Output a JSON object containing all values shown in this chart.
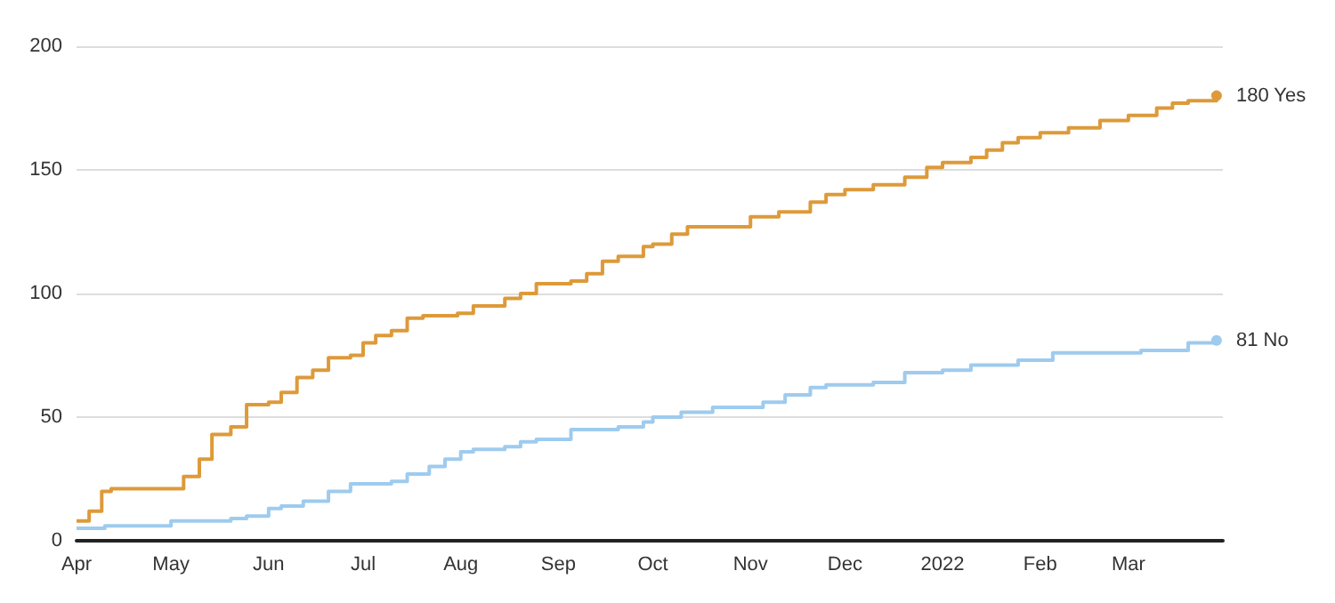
{
  "chart_data": {
    "type": "step",
    "legend": false,
    "grid": "y",
    "xlim": [
      "2021-04-01",
      "2022-03-31"
    ],
    "ylim": [
      0,
      200
    ],
    "yticks": [
      0,
      50,
      100,
      150,
      200
    ],
    "xticks": [
      {
        "value": "2021-04-01",
        "label": "Apr"
      },
      {
        "value": "2021-05-01",
        "label": "May"
      },
      {
        "value": "2021-06-01",
        "label": "Jun"
      },
      {
        "value": "2021-07-01",
        "label": "Jul"
      },
      {
        "value": "2021-08-01",
        "label": "Aug"
      },
      {
        "value": "2021-09-01",
        "label": "Sep"
      },
      {
        "value": "2021-10-01",
        "label": "Oct"
      },
      {
        "value": "2021-11-01",
        "label": "Nov"
      },
      {
        "value": "2021-12-01",
        "label": "Dec"
      },
      {
        "value": "2022-01-01",
        "label": "2022"
      },
      {
        "value": "2022-02-01",
        "label": "Feb"
      },
      {
        "value": "2022-03-01",
        "label": "Mar"
      }
    ],
    "series": [
      {
        "name": "Yes",
        "color": "#dd9a3a",
        "x": [
          "2021-04-01",
          "2021-04-05",
          "2021-04-09",
          "2021-04-12",
          "2021-04-30",
          "2021-05-05",
          "2021-05-10",
          "2021-05-14",
          "2021-05-20",
          "2021-05-25",
          "2021-06-01",
          "2021-06-05",
          "2021-06-10",
          "2021-06-15",
          "2021-06-20",
          "2021-06-27",
          "2021-07-01",
          "2021-07-05",
          "2021-07-10",
          "2021-07-15",
          "2021-07-20",
          "2021-07-31",
          "2021-08-05",
          "2021-08-15",
          "2021-08-20",
          "2021-08-25",
          "2021-09-05",
          "2021-09-10",
          "2021-09-15",
          "2021-09-20",
          "2021-09-28",
          "2021-10-01",
          "2021-10-07",
          "2021-10-12",
          "2021-10-25",
          "2021-11-01",
          "2021-11-10",
          "2021-11-20",
          "2021-11-25",
          "2021-12-01",
          "2021-12-10",
          "2021-12-20",
          "2021-12-27",
          "2022-01-01",
          "2022-01-10",
          "2022-01-15",
          "2022-01-20",
          "2022-01-25",
          "2022-02-01",
          "2022-02-10",
          "2022-02-20",
          "2022-03-01",
          "2022-03-10",
          "2022-03-15",
          "2022-03-20",
          "2022-03-29"
        ],
        "values": [
          8,
          12,
          20,
          21,
          21,
          26,
          33,
          43,
          46,
          55,
          56,
          60,
          66,
          69,
          74,
          75,
          80,
          83,
          85,
          90,
          91,
          92,
          95,
          98,
          100,
          104,
          105,
          108,
          113,
          115,
          119,
          120,
          124,
          127,
          127,
          131,
          133,
          137,
          140,
          142,
          144,
          147,
          151,
          153,
          155,
          158,
          161,
          163,
          165,
          167,
          170,
          172,
          175,
          177,
          178,
          180
        ],
        "value_labels": [
          null,
          null,
          null,
          null,
          null,
          null,
          null,
          null,
          null,
          null,
          null,
          null,
          null,
          null,
          null,
          null,
          null,
          null,
          null,
          null,
          null,
          null,
          null,
          null,
          null,
          null,
          null,
          null,
          null,
          null,
          null,
          null,
          null,
          null,
          null,
          null,
          null,
          null,
          null,
          null,
          null,
          null,
          null,
          null,
          null,
          null,
          null,
          null,
          null,
          null,
          null,
          null,
          null,
          null,
          null,
          "180"
        ]
      },
      {
        "name": "No",
        "color": "#9ecbee",
        "x": [
          "2021-04-01",
          "2021-04-10",
          "2021-04-25",
          "2021-05-01",
          "2021-05-20",
          "2021-05-25",
          "2021-06-01",
          "2021-06-05",
          "2021-06-12",
          "2021-06-20",
          "2021-06-27",
          "2021-07-10",
          "2021-07-15",
          "2021-07-22",
          "2021-07-27",
          "2021-08-01",
          "2021-08-05",
          "2021-08-15",
          "2021-08-20",
          "2021-08-25",
          "2021-09-05",
          "2021-09-20",
          "2021-09-28",
          "2021-10-01",
          "2021-10-10",
          "2021-10-20",
          "2021-11-01",
          "2021-11-05",
          "2021-11-12",
          "2021-11-20",
          "2021-11-25",
          "2021-12-10",
          "2021-12-20",
          "2022-01-01",
          "2022-01-10",
          "2022-01-25",
          "2022-02-05",
          "2022-02-20",
          "2022-03-05",
          "2022-03-20",
          "2022-03-29"
        ],
        "values": [
          5,
          6,
          6,
          8,
          9,
          10,
          13,
          14,
          16,
          20,
          23,
          24,
          27,
          30,
          33,
          36,
          37,
          38,
          40,
          41,
          45,
          46,
          48,
          50,
          52,
          54,
          54,
          56,
          59,
          62,
          63,
          64,
          68,
          69,
          71,
          73,
          76,
          76,
          77,
          80,
          81
        ],
        "value_labels": [
          null,
          null,
          null,
          null,
          null,
          null,
          null,
          null,
          null,
          null,
          null,
          null,
          null,
          null,
          null,
          null,
          null,
          null,
          null,
          null,
          null,
          null,
          null,
          null,
          null,
          null,
          null,
          null,
          null,
          null,
          null,
          null,
          null,
          null,
          null,
          null,
          null,
          null,
          null,
          null,
          "81"
        ]
      }
    ]
  }
}
